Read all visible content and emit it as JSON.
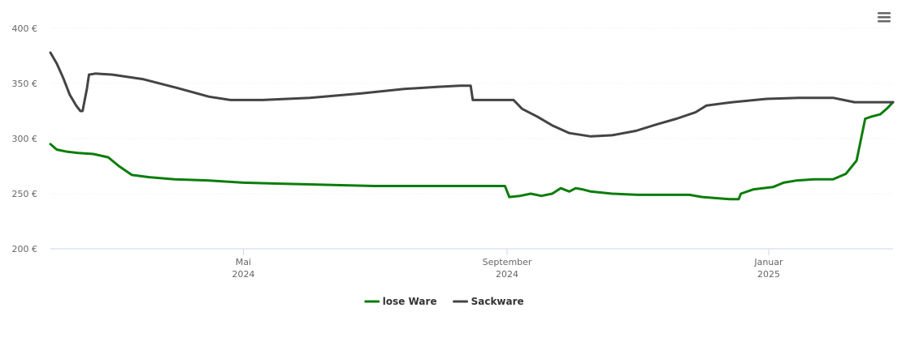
{
  "chart_data": {
    "type": "line",
    "y_ticks": [
      {
        "value": 200,
        "label": "200 €"
      },
      {
        "value": 250,
        "label": "250 €"
      },
      {
        "value": 300,
        "label": "300 €"
      },
      {
        "value": 350,
        "label": "350 €"
      },
      {
        "value": 400,
        "label": "400 €"
      }
    ],
    "ylim": [
      200,
      400
    ],
    "xlim": [
      "2024-02-01",
      "2025-02-28"
    ],
    "x_ticks": [
      {
        "date": "2024-05-01",
        "month": "Mai",
        "year": "2024"
      },
      {
        "date": "2024-09-01",
        "month": "September",
        "year": "2024"
      },
      {
        "date": "2025-01-01",
        "month": "Januar",
        "year": "2025"
      }
    ],
    "grid": true,
    "legend": "bottom-center",
    "series": [
      {
        "name": "lose Ware",
        "color": "#0a7d0a",
        "points": [
          [
            "2024-02-01",
            295
          ],
          [
            "2024-02-04",
            290
          ],
          [
            "2024-02-09",
            288
          ],
          [
            "2024-02-14",
            287
          ],
          [
            "2024-02-21",
            286
          ],
          [
            "2024-02-28",
            283
          ],
          [
            "2024-03-04",
            275
          ],
          [
            "2024-03-10",
            267
          ],
          [
            "2024-03-18",
            265
          ],
          [
            "2024-03-30",
            263
          ],
          [
            "2024-04-15",
            262
          ],
          [
            "2024-05-01",
            260
          ],
          [
            "2024-05-20",
            259
          ],
          [
            "2024-06-10",
            258
          ],
          [
            "2024-07-01",
            257
          ],
          [
            "2024-08-01",
            257
          ],
          [
            "2024-08-31",
            257
          ],
          [
            "2024-09-02",
            247
          ],
          [
            "2024-09-07",
            248
          ],
          [
            "2024-09-12",
            250
          ],
          [
            "2024-09-17",
            248
          ],
          [
            "2024-09-22",
            250
          ],
          [
            "2024-09-26",
            255
          ],
          [
            "2024-09-30",
            252
          ],
          [
            "2024-10-03",
            255
          ],
          [
            "2024-10-06",
            254
          ],
          [
            "2024-10-10",
            252
          ],
          [
            "2024-10-20",
            250
          ],
          [
            "2024-11-01",
            249
          ],
          [
            "2024-11-25",
            249
          ],
          [
            "2024-12-01",
            247
          ],
          [
            "2024-12-07",
            246
          ],
          [
            "2024-12-14",
            245
          ],
          [
            "2024-12-18",
            245
          ],
          [
            "2024-12-19",
            250
          ],
          [
            "2024-12-25",
            254
          ],
          [
            "2025-01-03",
            256
          ],
          [
            "2025-01-08",
            260
          ],
          [
            "2025-01-14",
            262
          ],
          [
            "2025-01-22",
            263
          ],
          [
            "2025-01-31",
            263
          ],
          [
            "2025-02-06",
            268
          ],
          [
            "2025-02-11",
            280
          ],
          [
            "2025-02-15",
            318
          ],
          [
            "2025-02-18",
            320
          ],
          [
            "2025-02-22",
            322
          ],
          [
            "2025-02-25",
            327
          ],
          [
            "2025-02-28",
            333
          ]
        ]
      },
      {
        "name": "Sackware",
        "color": "#444444",
        "points": [
          [
            "2024-02-01",
            378
          ],
          [
            "2024-02-04",
            368
          ],
          [
            "2024-02-07",
            355
          ],
          [
            "2024-02-10",
            340
          ],
          [
            "2024-02-13",
            330
          ],
          [
            "2024-02-15",
            325
          ],
          [
            "2024-02-16",
            325
          ],
          [
            "2024-02-18",
            345
          ],
          [
            "2024-02-19",
            358
          ],
          [
            "2024-02-22",
            359
          ],
          [
            "2024-03-01",
            358
          ],
          [
            "2024-03-15",
            354
          ],
          [
            "2024-03-31",
            346
          ],
          [
            "2024-04-15",
            338
          ],
          [
            "2024-04-25",
            335
          ],
          [
            "2024-05-10",
            335
          ],
          [
            "2024-06-01",
            337
          ],
          [
            "2024-06-25",
            341
          ],
          [
            "2024-07-15",
            345
          ],
          [
            "2024-07-31",
            347
          ],
          [
            "2024-08-10",
            348
          ],
          [
            "2024-08-15",
            348
          ],
          [
            "2024-08-16",
            335
          ],
          [
            "2024-08-30",
            335
          ],
          [
            "2024-09-04",
            335
          ],
          [
            "2024-09-08",
            327
          ],
          [
            "2024-09-15",
            320
          ],
          [
            "2024-09-22",
            312
          ],
          [
            "2024-09-30",
            305
          ],
          [
            "2024-10-10",
            302
          ],
          [
            "2024-10-20",
            303
          ],
          [
            "2024-10-31",
            307
          ],
          [
            "2024-11-10",
            313
          ],
          [
            "2024-11-19",
            318
          ],
          [
            "2024-11-28",
            324
          ],
          [
            "2024-12-03",
            330
          ],
          [
            "2024-12-15",
            333
          ],
          [
            "2024-12-31",
            336
          ],
          [
            "2025-01-15",
            337
          ],
          [
            "2025-01-31",
            337
          ],
          [
            "2025-02-05",
            335
          ],
          [
            "2025-02-10",
            333
          ],
          [
            "2025-02-28",
            333
          ]
        ]
      }
    ]
  }
}
